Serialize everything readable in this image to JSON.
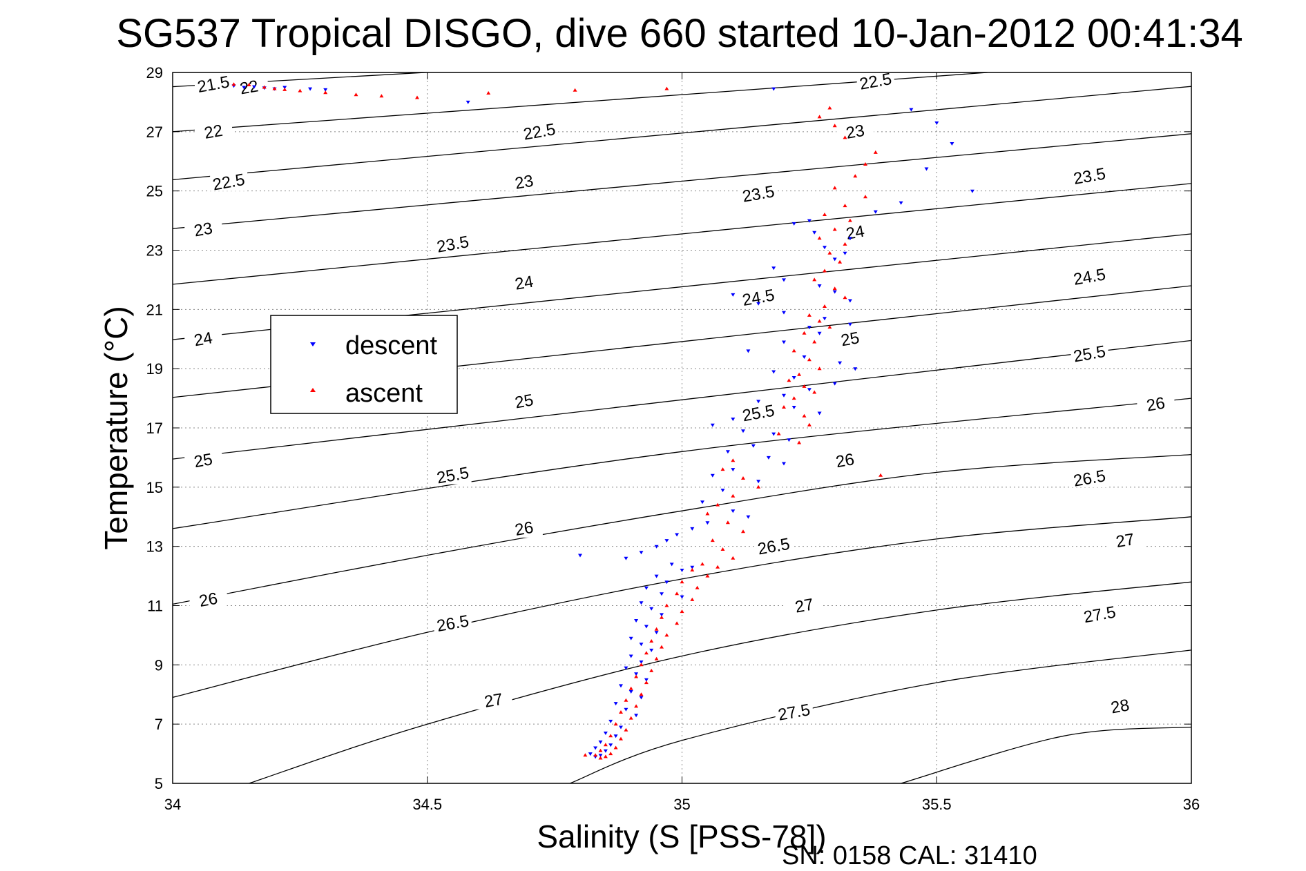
{
  "chart_data": {
    "type": "scatter",
    "title": "SG537 Tropical DISGO, dive 660 started 10-Jan-2012 00:41:34",
    "xlabel": "Salinity (S [PSS-78])",
    "ylabel": "Temperature (°C)",
    "xlim": [
      34,
      36
    ],
    "ylim": [
      5,
      29
    ],
    "x_ticks": [
      "34",
      "34.5",
      "35",
      "35.5",
      "36"
    ],
    "y_ticks": [
      "5",
      "7",
      "9",
      "11",
      "13",
      "15",
      "17",
      "19",
      "21",
      "23",
      "25",
      "27",
      "29"
    ],
    "grid": true,
    "legend_position": "center-left",
    "footer": "SN: 0158  CAL: 31410",
    "contour_levels": [
      "21.5",
      "22",
      "22.5",
      "23",
      "23.5",
      "24",
      "24.5",
      "25",
      "25.5",
      "26",
      "26.5",
      "27",
      "27.5",
      "28"
    ],
    "contours": [
      {
        "level": 21.5,
        "points": [
          [
            34.0,
            28.52
          ],
          [
            34.6,
            29.1
          ]
        ]
      },
      {
        "level": 22.0,
        "points": [
          [
            34.0,
            27.0
          ],
          [
            35.6,
            29.0
          ]
        ]
      },
      {
        "level": 22.5,
        "points": [
          [
            34.0,
            25.38
          ],
          [
            36.0,
            28.53
          ]
        ]
      },
      {
        "level": 23.0,
        "points": [
          [
            34.0,
            23.73
          ],
          [
            36.0,
            26.93
          ]
        ]
      },
      {
        "level": 23.5,
        "points": [
          [
            34.0,
            21.85
          ],
          [
            36.0,
            25.25
          ]
        ]
      },
      {
        "level": 24.0,
        "points": [
          [
            34.0,
            19.98
          ],
          [
            36.0,
            23.55
          ]
        ]
      },
      {
        "level": 24.5,
        "points": [
          [
            34.0,
            18.03
          ],
          [
            36.0,
            21.8
          ]
        ]
      },
      {
        "level": 25.0,
        "points": [
          [
            34.0,
            15.95
          ],
          [
            36.0,
            19.95
          ]
        ]
      },
      {
        "level": 25.5,
        "points": [
          [
            34.0,
            13.6
          ],
          [
            35.0,
            16.2
          ],
          [
            36.0,
            18.0
          ]
        ]
      },
      {
        "level": 26.0,
        "points": [
          [
            34.0,
            11.05
          ],
          [
            34.5,
            12.7
          ],
          [
            35.0,
            14.2
          ],
          [
            35.5,
            15.5
          ],
          [
            36.0,
            16.1
          ]
        ]
      },
      {
        "level": 26.5,
        "points": [
          [
            34.0,
            7.9
          ],
          [
            34.5,
            10.1
          ],
          [
            35.0,
            11.9
          ],
          [
            35.5,
            13.25
          ],
          [
            36.0,
            14.0
          ]
        ]
      },
      {
        "level": 27.0,
        "points": [
          [
            34.15,
            5.0
          ],
          [
            34.5,
            7.0
          ],
          [
            35.0,
            9.3
          ],
          [
            35.5,
            10.85
          ],
          [
            36.0,
            11.8
          ]
        ]
      },
      {
        "level": 27.5,
        "points": [
          [
            34.78,
            5.0
          ],
          [
            35.0,
            6.45
          ],
          [
            35.5,
            8.4
          ],
          [
            36.0,
            9.5
          ]
        ]
      },
      {
        "level": 28.0,
        "points": [
          [
            35.43,
            5.0
          ],
          [
            35.75,
            6.6
          ],
          [
            36.0,
            6.9
          ]
        ]
      }
    ],
    "contour_labels": [
      {
        "text": "21.5",
        "x": 34.08,
        "y": 28.6
      },
      {
        "text": "22",
        "x": 34.15,
        "y": 28.5
      },
      {
        "text": "22.5",
        "x": 35.38,
        "y": 28.7
      },
      {
        "text": "22",
        "x": 34.08,
        "y": 27.0
      },
      {
        "text": "22.5",
        "x": 34.72,
        "y": 27.0
      },
      {
        "text": "23",
        "x": 35.34,
        "y": 27.0
      },
      {
        "text": "22.5",
        "x": 34.11,
        "y": 25.3
      },
      {
        "text": "23",
        "x": 34.69,
        "y": 25.3
      },
      {
        "text": "23.5",
        "x": 35.8,
        "y": 25.5
      },
      {
        "text": "23",
        "x": 34.06,
        "y": 23.7
      },
      {
        "text": "23.5",
        "x": 34.55,
        "y": 23.2
      },
      {
        "text": "23.5",
        "x": 35.15,
        "y": 24.9
      },
      {
        "text": "24",
        "x": 35.34,
        "y": 23.6
      },
      {
        "text": "24",
        "x": 34.69,
        "y": 21.9
      },
      {
        "text": "24.5",
        "x": 35.8,
        "y": 22.1
      },
      {
        "text": "24.5",
        "x": 35.15,
        "y": 21.4
      },
      {
        "text": "24",
        "x": 34.06,
        "y": 20.0
      },
      {
        "text": "25",
        "x": 35.33,
        "y": 20.0
      },
      {
        "text": "25.5",
        "x": 35.8,
        "y": 19.5
      },
      {
        "text": "25",
        "x": 34.69,
        "y": 17.9
      },
      {
        "text": "25.5",
        "x": 35.15,
        "y": 17.5
      },
      {
        "text": "26",
        "x": 35.93,
        "y": 17.8
      },
      {
        "text": "25",
        "x": 34.06,
        "y": 15.9
      },
      {
        "text": "25.5",
        "x": 34.55,
        "y": 15.4
      },
      {
        "text": "26",
        "x": 35.32,
        "y": 15.9
      },
      {
        "text": "26.5",
        "x": 35.8,
        "y": 15.3
      },
      {
        "text": "26",
        "x": 34.69,
        "y": 13.6
      },
      {
        "text": "26.5",
        "x": 35.18,
        "y": 13.0
      },
      {
        "text": "27",
        "x": 35.87,
        "y": 13.2
      },
      {
        "text": "26",
        "x": 34.07,
        "y": 11.2
      },
      {
        "text": "26.5",
        "x": 34.55,
        "y": 10.4
      },
      {
        "text": "27",
        "x": 35.24,
        "y": 11.0
      },
      {
        "text": "27.5",
        "x": 35.82,
        "y": 10.7
      },
      {
        "text": "27",
        "x": 34.63,
        "y": 7.8
      },
      {
        "text": "27.5",
        "x": 35.22,
        "y": 7.4
      },
      {
        "text": "28",
        "x": 35.86,
        "y": 7.6
      }
    ],
    "series": [
      {
        "name": "descent",
        "color": "#0000ff",
        "marker": "triangle-down",
        "x": [
          34.12,
          34.14,
          34.16,
          34.18,
          34.2,
          34.22,
          34.27,
          34.3,
          34.58,
          35.18,
          35.45,
          35.5,
          35.53,
          35.48,
          35.57,
          35.43,
          35.38,
          35.25,
          35.22,
          35.26,
          35.33,
          35.28,
          35.32,
          35.3,
          35.18,
          35.2,
          35.27,
          35.3,
          35.33,
          35.15,
          35.1,
          35.2,
          35.28,
          35.25,
          35.33,
          35.27,
          35.2,
          35.13,
          35.24,
          35.31,
          35.34,
          35.18,
          35.22,
          35.3,
          35.25,
          35.2,
          35.15,
          35.22,
          35.27,
          35.1,
          35.06,
          35.12,
          35.18,
          35.21,
          35.14,
          35.09,
          35.17,
          35.2,
          35.1,
          35.06,
          35.15,
          35.08,
          35.04,
          35.1,
          35.13,
          35.05,
          35.02,
          34.99,
          34.97,
          34.95,
          34.92,
          34.89,
          34.8,
          34.98,
          35.02,
          35.0,
          34.95,
          34.97,
          34.93,
          34.96,
          35.0,
          34.92,
          34.94,
          34.96,
          34.91,
          34.93,
          34.95,
          34.9,
          34.92,
          34.94,
          34.9,
          34.92,
          34.89,
          34.91,
          34.93,
          34.88,
          34.9,
          34.92,
          34.87,
          34.89,
          34.91,
          34.86,
          34.88,
          34.85,
          34.87,
          34.84,
          34.86,
          34.83,
          34.85,
          34.82,
          34.84,
          34.83
        ],
        "y": [
          28.55,
          28.5,
          28.52,
          28.48,
          28.45,
          28.5,
          28.45,
          28.42,
          28.0,
          28.45,
          27.75,
          27.3,
          26.6,
          25.75,
          25.0,
          24.6,
          24.3,
          24.0,
          23.9,
          23.6,
          23.4,
          23.1,
          22.9,
          22.7,
          22.4,
          22.0,
          21.8,
          21.6,
          21.3,
          21.2,
          21.5,
          20.9,
          20.7,
          20.4,
          20.5,
          20.2,
          19.9,
          19.6,
          19.4,
          19.2,
          19.0,
          18.9,
          18.7,
          18.5,
          18.3,
          18.1,
          17.9,
          17.7,
          17.5,
          17.3,
          17.1,
          16.9,
          16.8,
          16.6,
          16.4,
          16.2,
          16.0,
          15.8,
          15.6,
          15.4,
          15.2,
          14.9,
          14.5,
          14.2,
          14.0,
          13.8,
          13.6,
          13.4,
          13.2,
          13.0,
          12.8,
          12.6,
          12.7,
          12.4,
          12.3,
          12.2,
          12.0,
          11.8,
          11.6,
          11.4,
          11.3,
          11.1,
          10.9,
          10.7,
          10.5,
          10.3,
          10.1,
          9.9,
          9.7,
          9.5,
          9.3,
          9.1,
          8.9,
          8.7,
          8.5,
          8.3,
          8.1,
          7.9,
          7.7,
          7.5,
          7.3,
          7.1,
          6.9,
          6.7,
          6.6,
          6.4,
          6.3,
          6.2,
          6.1,
          6.0,
          5.95,
          5.9
        ]
      },
      {
        "name": "ascent",
        "color": "#ff0000",
        "marker": "triangle-up",
        "x": [
          34.12,
          34.15,
          34.18,
          34.2,
          34.22,
          34.25,
          34.3,
          34.36,
          34.41,
          34.48,
          34.62,
          34.79,
          34.97,
          35.29,
          35.27,
          35.3,
          35.32,
          35.38,
          35.36,
          35.34,
          35.3,
          35.36,
          35.32,
          35.28,
          35.33,
          35.3,
          35.27,
          35.32,
          35.29,
          35.31,
          35.28,
          35.26,
          35.3,
          35.32,
          35.28,
          35.25,
          35.27,
          35.29,
          35.24,
          35.26,
          35.22,
          35.25,
          35.27,
          35.23,
          35.21,
          35.24,
          35.26,
          35.22,
          35.2,
          35.24,
          35.25,
          35.19,
          35.23,
          35.39,
          35.1,
          35.08,
          35.12,
          35.15,
          35.1,
          35.07,
          35.05,
          35.09,
          35.12,
          35.06,
          35.08,
          35.1,
          35.04,
          35.07,
          35.02,
          35.05,
          35.0,
          35.03,
          34.99,
          35.02,
          34.97,
          35.0,
          34.96,
          34.99,
          34.95,
          34.97,
          34.94,
          34.96,
          34.93,
          34.95,
          34.92,
          34.94,
          34.91,
          34.93,
          34.9,
          34.92,
          34.89,
          34.91,
          34.88,
          34.9,
          34.87,
          34.89,
          34.86,
          34.88,
          34.85,
          34.87,
          34.84,
          34.86,
          34.83,
          34.85,
          34.81,
          34.84
        ],
        "y": [
          28.6,
          28.58,
          28.5,
          28.45,
          28.42,
          28.38,
          28.32,
          28.25,
          28.2,
          28.15,
          28.3,
          28.4,
          28.45,
          27.8,
          27.5,
          27.2,
          26.8,
          26.3,
          25.9,
          25.5,
          25.1,
          24.8,
          24.5,
          24.2,
          24.0,
          23.7,
          23.4,
          23.2,
          22.9,
          22.6,
          22.3,
          22.0,
          21.7,
          21.4,
          21.1,
          20.8,
          20.6,
          20.4,
          20.2,
          19.9,
          19.6,
          19.3,
          19.0,
          18.8,
          18.6,
          18.4,
          18.2,
          18.0,
          17.7,
          17.4,
          17.1,
          16.8,
          16.5,
          15.4,
          15.9,
          15.6,
          15.3,
          15.0,
          14.7,
          14.4,
          14.1,
          13.8,
          13.5,
          13.2,
          12.9,
          12.6,
          12.4,
          12.3,
          12.2,
          12.0,
          11.8,
          11.6,
          11.4,
          11.2,
          11.0,
          10.8,
          10.6,
          10.4,
          10.2,
          10.0,
          9.8,
          9.6,
          9.4,
          9.2,
          9.0,
          8.8,
          8.6,
          8.4,
          8.2,
          8.0,
          7.8,
          7.6,
          7.4,
          7.2,
          7.0,
          6.8,
          6.6,
          6.5,
          6.3,
          6.2,
          6.1,
          6.0,
          5.95,
          5.9,
          5.95,
          5.85
        ]
      }
    ]
  }
}
